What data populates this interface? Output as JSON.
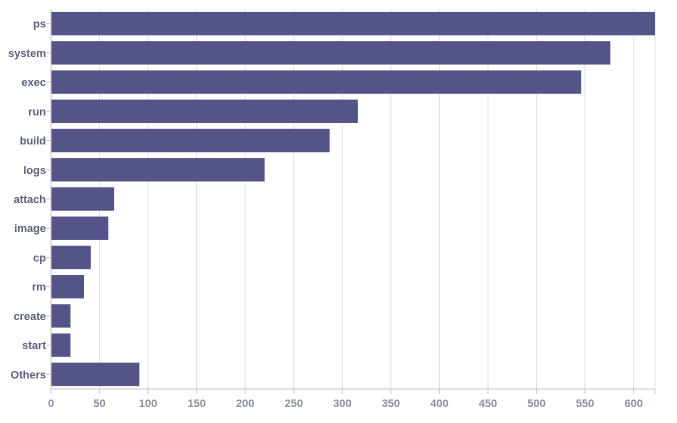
{
  "chart_data": {
    "type": "bar",
    "orientation": "horizontal",
    "categories": [
      "ps",
      "system",
      "exec",
      "run",
      "build",
      "logs",
      "attach",
      "image",
      "cp",
      "rm",
      "create",
      "start",
      "Others"
    ],
    "values": [
      622,
      576,
      546,
      316,
      287,
      220,
      65,
      59,
      41,
      34,
      20,
      20,
      91
    ],
    "xlim": [
      0,
      622
    ],
    "xticks": [
      0,
      50,
      100,
      150,
      200,
      250,
      300,
      350,
      400,
      450,
      500,
      550,
      600
    ],
    "grid": true,
    "title": "",
    "xlabel": "",
    "ylabel": "",
    "colors": {
      "bar": "#545489"
    }
  }
}
